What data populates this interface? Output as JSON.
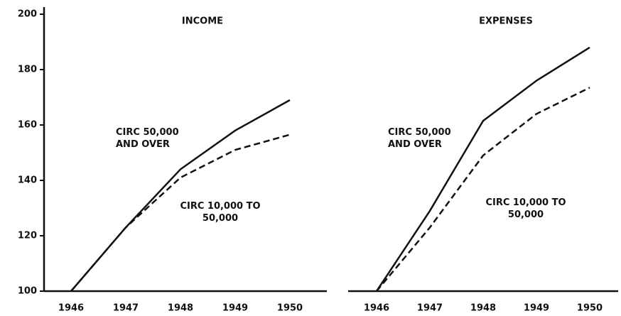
{
  "chart_data": [
    {
      "type": "line",
      "title": "INCOME",
      "categories": [
        "1946",
        "1947",
        "1948",
        "1949",
        "1950"
      ],
      "series": [
        {
          "name": "CIRC 50,000 AND OVER",
          "color": "#111",
          "dash": false,
          "values": [
            100,
            123,
            144,
            158,
            169
          ]
        },
        {
          "name": "CIRC 10,000 TO 50,000",
          "color": "#111",
          "dash": true,
          "values": [
            100,
            123,
            141,
            151,
            156.5
          ]
        }
      ],
      "ylim": [
        100,
        200
      ],
      "yticks": [
        100,
        120,
        140,
        160,
        180,
        200
      ]
    },
    {
      "type": "line",
      "title": "EXPENSES",
      "categories": [
        "1946",
        "1947",
        "1948",
        "1949",
        "1950"
      ],
      "series": [
        {
          "name": "CIRC 50,000 AND OVER",
          "color": "#111",
          "dash": false,
          "values": [
            100,
            129,
            161.5,
            176,
            188
          ]
        },
        {
          "name": "CIRC 10,000 TO 50,000",
          "color": "#111",
          "dash": true,
          "values": [
            100,
            123,
            149,
            164,
            173.5
          ]
        }
      ],
      "ylim": [
        100,
        200
      ]
    }
  ]
}
